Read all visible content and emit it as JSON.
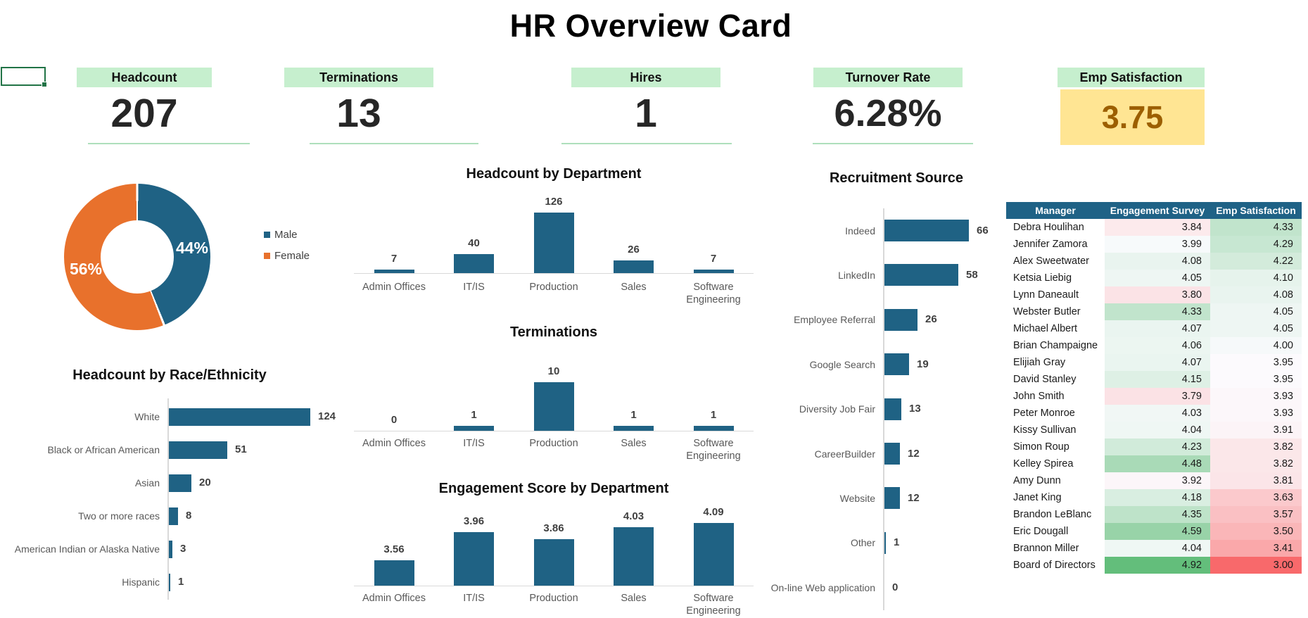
{
  "title": "HR Overview Card",
  "kpis": [
    {
      "label": "Headcount",
      "value": "207"
    },
    {
      "label": "Terminations",
      "value": "13"
    },
    {
      "label": "Hires",
      "value": "1"
    },
    {
      "label": "Turnover Rate",
      "value": "6.28%"
    },
    {
      "label": "Emp Satisfaction",
      "value": "3.75"
    }
  ],
  "colors": {
    "kpi_header_bg": "#C6EFCE",
    "kpi_underline": "#AEDFBC",
    "bar_blue": "#1F6284",
    "donut_orange": "#E8712C",
    "emp_sat_bg": "#FFE593",
    "emp_sat_text": "#9C5F00",
    "table_header_bg": "#1F6286",
    "selection_green": "#217346",
    "axis_gray": "#D9D9D9"
  },
  "chart_data": [
    {
      "id": "gender_donut",
      "type": "pie",
      "subtype": "doughnut",
      "legend": [
        "Male",
        "Female"
      ],
      "values": [
        44,
        56
      ],
      "labels": [
        "44%",
        "56%"
      ],
      "colors": [
        "#1F6284",
        "#E8712C"
      ],
      "legend_position": "right"
    },
    {
      "id": "headcount_by_department",
      "type": "bar",
      "title": "Headcount by Department",
      "categories": [
        "Admin Offices",
        "IT/IS",
        "Production",
        "Sales",
        "Software Engineering"
      ],
      "values": [
        7,
        40,
        126,
        26,
        7
      ],
      "ylim": [
        0,
        126
      ],
      "grid": false,
      "data_labels": true
    },
    {
      "id": "terminations_by_department",
      "type": "bar",
      "title": "Terminations",
      "categories": [
        "Admin Offices",
        "IT/IS",
        "Production",
        "Sales",
        "Software Engineering"
      ],
      "values": [
        0,
        1,
        10,
        1,
        1
      ],
      "ylim": [
        0,
        10
      ],
      "grid": false,
      "data_labels": true
    },
    {
      "id": "engagement_by_department",
      "type": "bar",
      "title": "Engagement Score by Department",
      "categories": [
        "Admin Offices",
        "IT/IS",
        "Production",
        "Sales",
        "Software Engineering"
      ],
      "values": [
        3.56,
        3.96,
        3.86,
        4.03,
        4.09
      ],
      "decimals": 2,
      "ylim": [
        3.2,
        4.2
      ],
      "grid": false,
      "data_labels": true
    },
    {
      "id": "headcount_by_race",
      "type": "hbar",
      "title": "Headcount by Race/Ethnicity",
      "categories": [
        "White",
        "Black or African American",
        "Asian",
        "Two or more races",
        "American Indian or Alaska Native",
        "Hispanic"
      ],
      "values": [
        124,
        51,
        20,
        8,
        3,
        1
      ],
      "xlim": [
        0,
        124
      ],
      "grid": false,
      "data_labels": true
    },
    {
      "id": "recruitment_source",
      "type": "hbar",
      "title": "Recruitment Source",
      "categories": [
        "Indeed",
        "LinkedIn",
        "Employee Referral",
        "Google Search",
        "Diversity Job Fair",
        "CareerBuilder",
        "Website",
        "Other",
        "On-line Web application"
      ],
      "values": [
        66,
        58,
        26,
        19,
        13,
        12,
        12,
        1,
        0
      ],
      "xlim": [
        0,
        66
      ],
      "grid": false,
      "data_labels": true
    }
  ],
  "manager_table": {
    "headers": [
      "Manager",
      "Engagement Survey",
      "Emp Satisfaction"
    ],
    "rows": [
      [
        "Debra Houlihan",
        3.84,
        4.33
      ],
      [
        "Jennifer Zamora",
        3.99,
        4.29
      ],
      [
        "Alex Sweetwater",
        4.08,
        4.22
      ],
      [
        "Ketsia Liebig",
        4.05,
        4.1
      ],
      [
        "Lynn Daneault",
        3.8,
        4.08
      ],
      [
        "Webster Butler",
        4.33,
        4.05
      ],
      [
        "Michael Albert",
        4.07,
        4.05
      ],
      [
        "Brian Champaigne",
        4.06,
        4.0
      ],
      [
        "Elijiah Gray",
        4.07,
        3.95
      ],
      [
        "David Stanley",
        4.15,
        3.95
      ],
      [
        "John Smith",
        3.79,
        3.93
      ],
      [
        "Peter Monroe",
        4.03,
        3.93
      ],
      [
        "Kissy Sullivan",
        4.04,
        3.91
      ],
      [
        "Simon Roup",
        4.23,
        3.82
      ],
      [
        "Kelley Spirea",
        4.48,
        3.82
      ],
      [
        "Amy Dunn",
        3.92,
        3.81
      ],
      [
        "Janet King",
        4.18,
        3.63
      ],
      [
        "Brandon LeBlanc",
        4.35,
        3.57
      ],
      [
        "Eric Dougall",
        4.59,
        3.5
      ],
      [
        "Brannon Miller",
        4.04,
        3.41
      ],
      [
        "Board of Directors",
        4.92,
        3.0
      ]
    ],
    "color_scale": {
      "min": 3.0,
      "max": 4.92,
      "min_color": "#F8696B",
      "mid_color": "#FCFCFF",
      "max_color": "#63BE7B"
    }
  }
}
